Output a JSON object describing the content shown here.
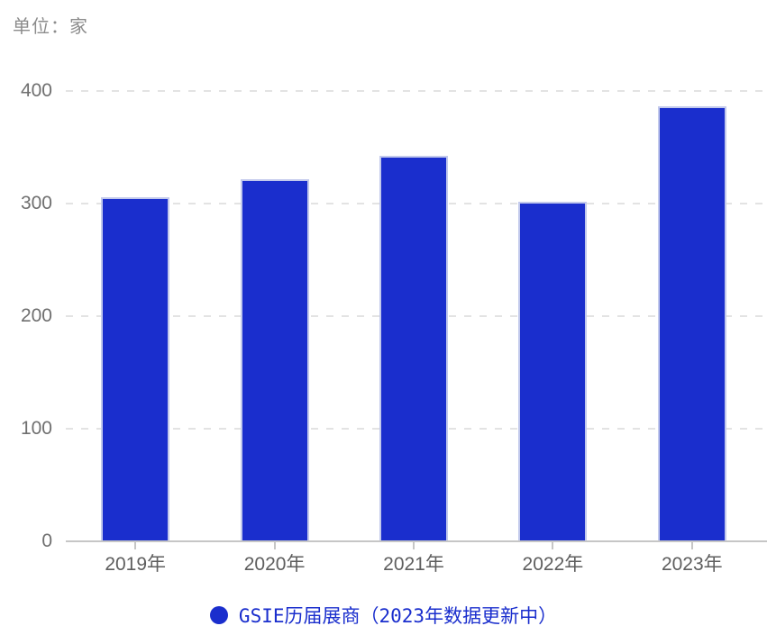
{
  "chart_data": {
    "type": "bar",
    "title": "单位：家",
    "categories": [
      "2019年",
      "2020年",
      "2021年",
      "2022年",
      "2023年"
    ],
    "series": [
      {
        "name": "GSIE历届展商（2023年数据更新中）",
        "values": [
          305,
          321,
          342,
          301,
          386
        ]
      }
    ],
    "ylim": [
      0,
      400
    ],
    "yticks": [
      0,
      100,
      200,
      300,
      400
    ],
    "grid": true,
    "legend_position": "bottom",
    "legend_marker": "circle-icon",
    "colors": {
      "bar_fill": "#1A2ECD",
      "bar_border": "#C2C9EC",
      "grid_line": "#E3E3E3",
      "axis_line": "#C6C6C6",
      "unit_text": "#8C8C8C",
      "y_label_text": "#6F6F6F",
      "x_label_text": "#5E5E5E",
      "legend_text": "#1A2ECD"
    }
  }
}
